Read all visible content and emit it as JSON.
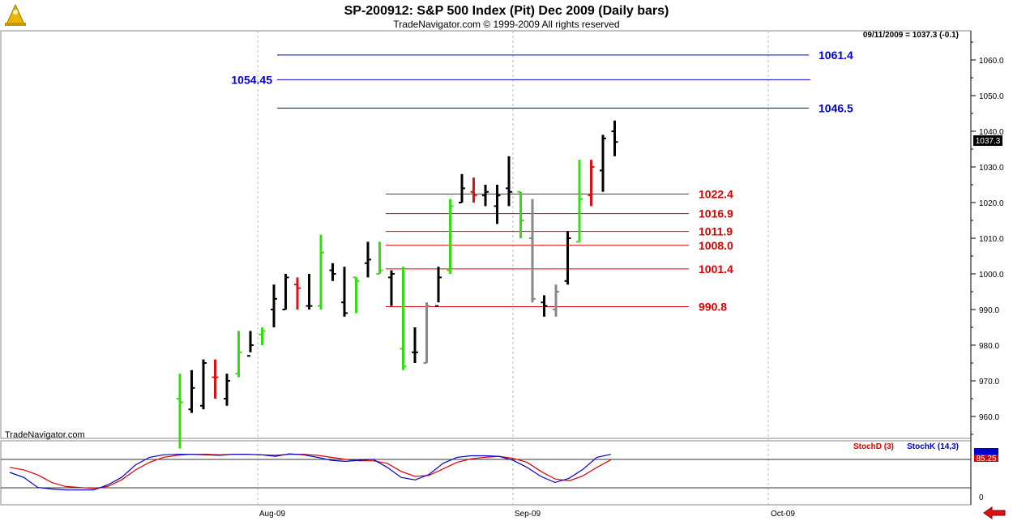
{
  "header": {
    "title": "SP-200912:  S&P 500 Index (Pit) Dec 2009  (Daily bars)",
    "subtitle": "TradeNavigator.com © 1999-2009 All rights reserved",
    "last_info": "09/11/2009 = 1037.3 (-0.1)",
    "watermark": "TradeNavigator.com"
  },
  "chart_data": [
    {
      "type": "ohlc",
      "title": "SP-200912:  S&P 500 Index (Pit) Dec 2009  (Daily bars)",
      "ylim": [
        950,
        1068
      ],
      "y_ticks": [
        "960.0",
        "970.0",
        "980.0",
        "990.0",
        "1000.0",
        "1010.0",
        "1020.0",
        "1030.0",
        "1040.0",
        "1050.0",
        "1060.0"
      ],
      "x_labels": [
        "Aug-09",
        "Sep-09",
        "Oct-09"
      ],
      "last_price_label": "1037.3",
      "bars": [
        {
          "o": 965,
          "h": 972,
          "l": 951,
          "c": 964,
          "color": "green"
        },
        {
          "o": 962,
          "h": 973,
          "l": 961,
          "c": 968,
          "color": "black"
        },
        {
          "o": 963,
          "h": 976,
          "l": 962,
          "c": 975,
          "color": "black"
        },
        {
          "o": 971,
          "h": 976,
          "l": 965,
          "c": 971,
          "color": "red"
        },
        {
          "o": 965,
          "h": 972,
          "l": 963,
          "c": 970,
          "color": "black"
        },
        {
          "o": 972,
          "h": 984,
          "l": 971,
          "c": 978,
          "color": "green"
        },
        {
          "o": 977,
          "h": 984,
          "l": 978,
          "c": 980,
          "color": "black"
        },
        {
          "o": 983,
          "h": 985,
          "l": 980,
          "c": 984,
          "color": "green"
        },
        {
          "o": 990,
          "h": 997,
          "l": 985,
          "c": 993,
          "color": "black"
        },
        {
          "o": 990,
          "h": 1000,
          "l": 990,
          "c": 999,
          "color": "black"
        },
        {
          "o": 997,
          "h": 999,
          "l": 990,
          "c": 996,
          "color": "red"
        },
        {
          "o": 991,
          "h": 1000,
          "l": 990,
          "c": 991,
          "color": "black"
        },
        {
          "o": 991,
          "h": 1011,
          "l": 990,
          "c": 1006,
          "color": "green"
        },
        {
          "o": 1001,
          "h": 1003,
          "l": 998,
          "c": 1000,
          "color": "black"
        },
        {
          "o": 992,
          "h": 1002,
          "l": 988,
          "c": 989,
          "color": "black"
        },
        {
          "o": 999,
          "h": 999,
          "l": 989,
          "c": 998,
          "color": "green"
        },
        {
          "o": 1003,
          "h": 1009,
          "l": 999,
          "c": 1004,
          "color": "black"
        },
        {
          "o": 1000,
          "h": 1009,
          "l": 1000,
          "c": 1001,
          "color": "green"
        },
        {
          "o": 999,
          "h": 1001,
          "l": 991,
          "c": 1000,
          "color": "black"
        },
        {
          "o": 979,
          "h": 1002,
          "l": 973,
          "c": 974,
          "color": "green"
        },
        {
          "o": 978,
          "h": 985,
          "l": 975,
          "c": 978,
          "color": "black"
        },
        {
          "o": 975,
          "h": 992,
          "l": 975,
          "c": 991,
          "color": "gray"
        },
        {
          "o": 991,
          "h": 1002,
          "l": 992,
          "c": 999,
          "color": "black"
        },
        {
          "o": 1001,
          "h": 1021,
          "l": 1000,
          "c": 1019,
          "color": "green"
        },
        {
          "o": 1020,
          "h": 1028,
          "l": 1020,
          "c": 1024,
          "color": "black"
        },
        {
          "o": 1023,
          "h": 1027,
          "l": 1020,
          "c": 1022,
          "color": "red"
        },
        {
          "o": 1022,
          "h": 1025,
          "l": 1019,
          "c": 1023,
          "color": "black"
        },
        {
          "o": 1019,
          "h": 1025,
          "l": 1014,
          "c": 1022,
          "color": "black"
        },
        {
          "o": 1024,
          "h": 1033,
          "l": 1019,
          "c": 1023,
          "color": "black"
        },
        {
          "o": 1023,
          "h": 1023,
          "l": 1010,
          "c": 1015,
          "color": "green"
        },
        {
          "o": 1010,
          "h": 1021,
          "l": 992,
          "c": 993,
          "color": "gray"
        },
        {
          "o": 992,
          "h": 994,
          "l": 988,
          "c": 991,
          "color": "black"
        },
        {
          "o": 990,
          "h": 997,
          "l": 988,
          "c": 995,
          "color": "gray"
        },
        {
          "o": 998,
          "h": 1012,
          "l": 997,
          "c": 1010,
          "color": "black"
        },
        {
          "o": 1009,
          "h": 1032,
          "l": 1009,
          "c": 1021,
          "color": "green"
        },
        {
          "o": 1022,
          "h": 1032,
          "l": 1019,
          "c": 1030,
          "color": "red"
        },
        {
          "o": 1029,
          "h": 1039,
          "l": 1023,
          "c": 1038,
          "color": "black"
        },
        {
          "o": 1040,
          "h": 1043,
          "l": 1033,
          "c": 1037,
          "color": "black"
        }
      ],
      "levels": [
        {
          "value": 1061.4,
          "label": "1061.4",
          "color": "blue"
        },
        {
          "value": 1054.45,
          "label": "1054.45",
          "color": "blue"
        },
        {
          "value": 1046.5,
          "label": "1046.5",
          "color": "blue"
        },
        {
          "value": 1022.4,
          "label": "1022.4",
          "color": "red"
        },
        {
          "value": 1016.9,
          "label": "1016.9",
          "color": "red"
        },
        {
          "value": 1011.9,
          "label": "1011.9",
          "color": "red"
        },
        {
          "value": 1008.0,
          "label": "1008.0",
          "color": "red"
        },
        {
          "value": 1001.4,
          "label": "1001.4",
          "color": "red"
        },
        {
          "value": 990.8,
          "label": "990.8",
          "color": "red"
        }
      ],
      "colors": {
        "green": "#33dd11",
        "red": "#dd1111",
        "black": "#000000",
        "gray": "#888888",
        "blue": "#0000cc",
        "level_red": "#dd0000"
      }
    },
    {
      "type": "line",
      "title": "",
      "ylim": [
        0,
        100
      ],
      "y_ticks": [
        "0"
      ],
      "reference_lines": [
        20,
        80
      ],
      "last_value_label": "85.25",
      "series": [
        {
          "name": "StochD (3)",
          "color": "#dd0000",
          "values": [
            60,
            55,
            45,
            30,
            22,
            20,
            18,
            22,
            35,
            55,
            70,
            80,
            84,
            86,
            86,
            85,
            86,
            86,
            85,
            84,
            86,
            86,
            84,
            80,
            76,
            73,
            73,
            68,
            52,
            42,
            44,
            57,
            70,
            77,
            80,
            82,
            78,
            70,
            52,
            37,
            33,
            43,
            60,
            75
          ]
        },
        {
          "name": "StochK (14,3)",
          "color": "#0000cc",
          "values": [
            50,
            40,
            20,
            17,
            15,
            15,
            15,
            25,
            40,
            65,
            80,
            85,
            86,
            86,
            85,
            84,
            86,
            86,
            85,
            82,
            87,
            85,
            80,
            74,
            72,
            74,
            76,
            60,
            40,
            35,
            46,
            68,
            80,
            83,
            83,
            82,
            74,
            60,
            42,
            30,
            38,
            56,
            80,
            86
          ]
        }
      ]
    }
  ]
}
